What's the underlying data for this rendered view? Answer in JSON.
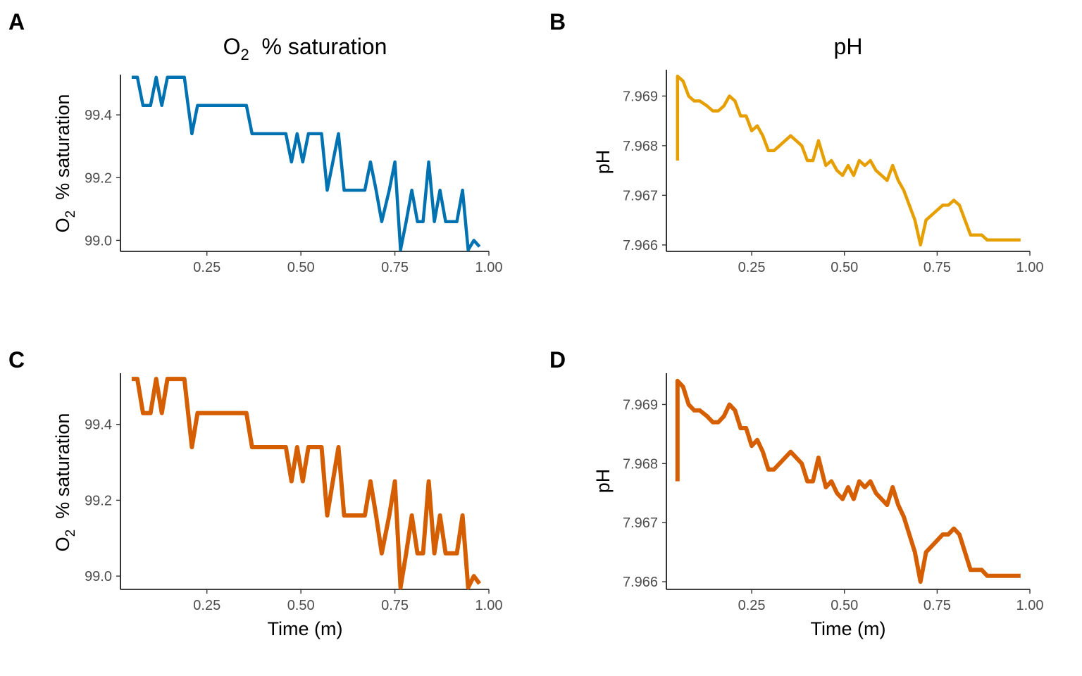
{
  "chart_data": [
    {
      "panel_label": "A",
      "type": "line",
      "title": "O2 % saturation",
      "title_main": "O",
      "title_sub": "2",
      "title_rest": "  % saturation",
      "xlabel": "",
      "ylabel_main": "O",
      "ylabel_sub": "2",
      "ylabel_rest": "  % saturation",
      "xlim": [
        0.02,
        1.0
      ],
      "ylim": [
        98.965,
        99.535
      ],
      "xticks": [
        0.25,
        0.5,
        0.75,
        1.0
      ],
      "xtick_labels": [
        "0.25",
        "0.50",
        "0.75",
        "1.00"
      ],
      "yticks": [
        99.0,
        99.2,
        99.4
      ],
      "ytick_labels": [
        "99.0",
        "99.2",
        "99.4"
      ],
      "grid": false,
      "series": [
        {
          "color": "#0072B2",
          "x": [
            0.05,
            0.065,
            0.08,
            0.1,
            0.115,
            0.13,
            0.145,
            0.16,
            0.175,
            0.19,
            0.21,
            0.225,
            0.24,
            0.26,
            0.28,
            0.31,
            0.34,
            0.355,
            0.37,
            0.39,
            0.41,
            0.43,
            0.45,
            0.46,
            0.475,
            0.49,
            0.505,
            0.52,
            0.54,
            0.555,
            0.57,
            0.585,
            0.6,
            0.615,
            0.635,
            0.65,
            0.67,
            0.685,
            0.7,
            0.715,
            0.735,
            0.75,
            0.765,
            0.78,
            0.795,
            0.81,
            0.825,
            0.84,
            0.855,
            0.87,
            0.885,
            0.9,
            0.915,
            0.93,
            0.945,
            0.96,
            0.975
          ],
          "values": [
            99.52,
            99.52,
            99.43,
            99.43,
            99.52,
            99.43,
            99.52,
            99.52,
            99.52,
            99.52,
            99.34,
            99.43,
            99.43,
            99.43,
            99.43,
            99.43,
            99.43,
            99.43,
            99.34,
            99.34,
            99.34,
            99.34,
            99.34,
            99.34,
            99.25,
            99.34,
            99.25,
            99.34,
            99.34,
            99.34,
            99.16,
            99.25,
            99.34,
            99.16,
            99.16,
            99.16,
            99.16,
            99.25,
            99.16,
            99.06,
            99.16,
            99.25,
            98.97,
            99.06,
            99.16,
            99.06,
            99.06,
            99.25,
            99.06,
            99.16,
            99.06,
            99.06,
            99.06,
            99.16,
            98.97,
            99.0,
            98.98
          ]
        }
      ]
    },
    {
      "panel_label": "B",
      "type": "line",
      "title": "pH",
      "xlabel": "",
      "ylabel": "pH",
      "xlim": [
        0.02,
        1.0
      ],
      "ylim": [
        7.96587,
        7.96953
      ],
      "xticks": [
        0.25,
        0.5,
        0.75,
        1.0
      ],
      "xtick_labels": [
        "0.25",
        "0.50",
        "0.75",
        "1.00"
      ],
      "yticks": [
        7.966,
        7.967,
        7.968,
        7.969
      ],
      "ytick_labels": [
        "7.966",
        "7.967",
        "7.968",
        "7.969"
      ],
      "grid": false,
      "series": [
        {
          "color": "#E69F00",
          "x": [
            0.05,
            0.05,
            0.065,
            0.08,
            0.095,
            0.11,
            0.13,
            0.145,
            0.16,
            0.175,
            0.19,
            0.205,
            0.22,
            0.235,
            0.25,
            0.265,
            0.28,
            0.295,
            0.31,
            0.325,
            0.34,
            0.355,
            0.37,
            0.385,
            0.4,
            0.415,
            0.43,
            0.45,
            0.465,
            0.48,
            0.495,
            0.51,
            0.525,
            0.54,
            0.555,
            0.57,
            0.585,
            0.6,
            0.615,
            0.63,
            0.645,
            0.66,
            0.675,
            0.69,
            0.705,
            0.72,
            0.735,
            0.75,
            0.765,
            0.78,
            0.795,
            0.81,
            0.825,
            0.84,
            0.855,
            0.87,
            0.885,
            0.9,
            0.915,
            0.93,
            0.945,
            0.96,
            0.975
          ],
          "values": [
            7.9677,
            7.9694,
            7.9693,
            7.969,
            7.9689,
            7.9689,
            7.9688,
            7.9687,
            7.9687,
            7.9688,
            7.969,
            7.9689,
            7.9686,
            7.9686,
            7.9683,
            7.9684,
            7.9682,
            7.9679,
            7.9679,
            7.968,
            7.9681,
            7.9682,
            7.9681,
            7.968,
            7.9677,
            7.9677,
            7.9681,
            7.9676,
            7.9677,
            7.9675,
            7.9674,
            7.9676,
            7.9674,
            7.9677,
            7.9676,
            7.9677,
            7.9675,
            7.9674,
            7.9673,
            7.9676,
            7.9673,
            7.9671,
            7.9668,
            7.9665,
            7.966,
            7.9665,
            7.9666,
            7.9667,
            7.9668,
            7.9668,
            7.9669,
            7.9668,
            7.9665,
            7.9662,
            7.9662,
            7.9662,
            7.9661,
            7.9661,
            7.9661,
            7.9661,
            7.9661,
            7.9661,
            7.9661
          ]
        }
      ]
    },
    {
      "panel_label": "C",
      "type": "line",
      "title": "",
      "xlabel": "Time (m)",
      "ylabel_main": "O",
      "ylabel_sub": "2",
      "ylabel_rest": "  % saturation",
      "xlim": [
        0.02,
        1.0
      ],
      "ylim": [
        98.965,
        99.535
      ],
      "xticks": [
        0.25,
        0.5,
        0.75,
        1.0
      ],
      "xtick_labels": [
        "0.25",
        "0.50",
        "0.75",
        "1.00"
      ],
      "yticks": [
        99.0,
        99.2,
        99.4
      ],
      "ytick_labels": [
        "99.0",
        "99.2",
        "99.4"
      ],
      "grid": false,
      "series": [
        {
          "color": "#D55E00",
          "x": [
            0.05,
            0.065,
            0.08,
            0.1,
            0.115,
            0.13,
            0.145,
            0.16,
            0.175,
            0.19,
            0.21,
            0.225,
            0.24,
            0.26,
            0.28,
            0.31,
            0.34,
            0.355,
            0.37,
            0.39,
            0.41,
            0.43,
            0.45,
            0.46,
            0.475,
            0.49,
            0.505,
            0.52,
            0.54,
            0.555,
            0.57,
            0.585,
            0.6,
            0.615,
            0.635,
            0.65,
            0.67,
            0.685,
            0.7,
            0.715,
            0.735,
            0.75,
            0.765,
            0.78,
            0.795,
            0.81,
            0.825,
            0.84,
            0.855,
            0.87,
            0.885,
            0.9,
            0.915,
            0.93,
            0.945,
            0.96,
            0.975
          ],
          "values": [
            99.52,
            99.52,
            99.43,
            99.43,
            99.52,
            99.43,
            99.52,
            99.52,
            99.52,
            99.52,
            99.34,
            99.43,
            99.43,
            99.43,
            99.43,
            99.43,
            99.43,
            99.43,
            99.34,
            99.34,
            99.34,
            99.34,
            99.34,
            99.34,
            99.25,
            99.34,
            99.25,
            99.34,
            99.34,
            99.34,
            99.16,
            99.25,
            99.34,
            99.16,
            99.16,
            99.16,
            99.16,
            99.25,
            99.16,
            99.06,
            99.16,
            99.25,
            98.97,
            99.06,
            99.16,
            99.06,
            99.06,
            99.25,
            99.06,
            99.16,
            99.06,
            99.06,
            99.06,
            99.16,
            98.97,
            99.0,
            98.98
          ]
        }
      ]
    },
    {
      "panel_label": "D",
      "type": "line",
      "title": "",
      "xlabel": "Time (m)",
      "ylabel": "pH",
      "xlim": [
        0.02,
        1.0
      ],
      "ylim": [
        7.96587,
        7.96953
      ],
      "xticks": [
        0.25,
        0.5,
        0.75,
        1.0
      ],
      "xtick_labels": [
        "0.25",
        "0.50",
        "0.75",
        "1.00"
      ],
      "yticks": [
        7.966,
        7.967,
        7.968,
        7.969
      ],
      "ytick_labels": [
        "7.966",
        "7.967",
        "7.968",
        "7.969"
      ],
      "grid": false,
      "series": [
        {
          "color": "#D55E00",
          "x": [
            0.05,
            0.05,
            0.065,
            0.08,
            0.095,
            0.11,
            0.13,
            0.145,
            0.16,
            0.175,
            0.19,
            0.205,
            0.22,
            0.235,
            0.25,
            0.265,
            0.28,
            0.295,
            0.31,
            0.325,
            0.34,
            0.355,
            0.37,
            0.385,
            0.4,
            0.415,
            0.43,
            0.45,
            0.465,
            0.48,
            0.495,
            0.51,
            0.525,
            0.54,
            0.555,
            0.57,
            0.585,
            0.6,
            0.615,
            0.63,
            0.645,
            0.66,
            0.675,
            0.69,
            0.705,
            0.72,
            0.735,
            0.75,
            0.765,
            0.78,
            0.795,
            0.81,
            0.825,
            0.84,
            0.855,
            0.87,
            0.885,
            0.9,
            0.915,
            0.93,
            0.945,
            0.96,
            0.975
          ],
          "values": [
            7.9677,
            7.9694,
            7.9693,
            7.969,
            7.9689,
            7.9689,
            7.9688,
            7.9687,
            7.9687,
            7.9688,
            7.969,
            7.9689,
            7.9686,
            7.9686,
            7.9683,
            7.9684,
            7.9682,
            7.9679,
            7.9679,
            7.968,
            7.9681,
            7.9682,
            7.9681,
            7.968,
            7.9677,
            7.9677,
            7.9681,
            7.9676,
            7.9677,
            7.9675,
            7.9674,
            7.9676,
            7.9674,
            7.9677,
            7.9676,
            7.9677,
            7.9675,
            7.9674,
            7.9673,
            7.9676,
            7.9673,
            7.9671,
            7.9668,
            7.9665,
            7.966,
            7.9665,
            7.9666,
            7.9667,
            7.9668,
            7.9668,
            7.9669,
            7.9668,
            7.9665,
            7.9662,
            7.9662,
            7.9662,
            7.9661,
            7.9661,
            7.9661,
            7.9661,
            7.9661,
            7.9661,
            7.9661
          ]
        }
      ]
    }
  ]
}
